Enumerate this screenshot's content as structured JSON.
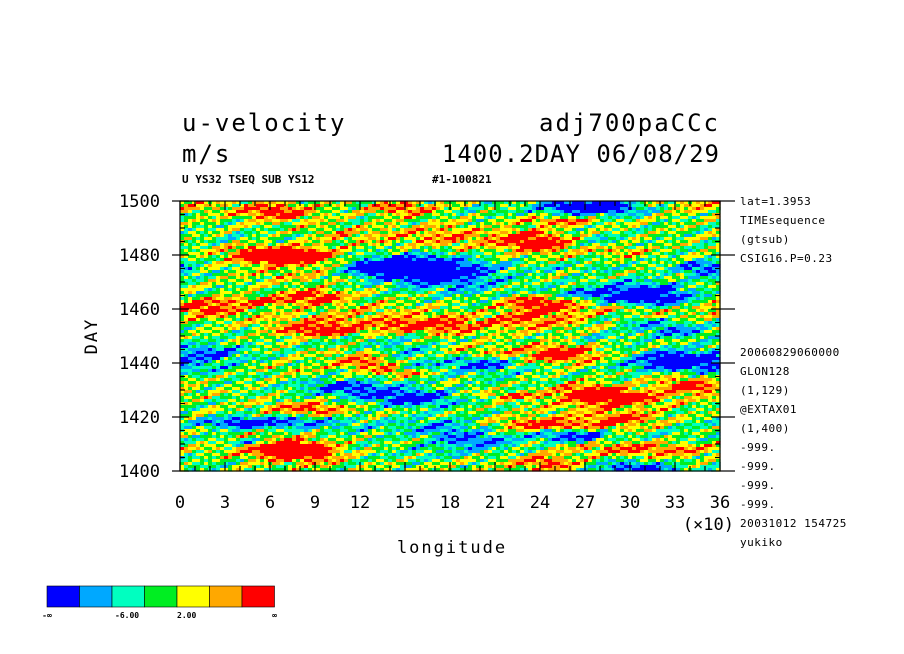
{
  "header": {
    "title_left": "u-velocity",
    "title_right": "adj700paCCc",
    "units": "m/s",
    "time": "1400.2DAY 06/08/29",
    "sub_left": "U YS32 TSEQ SUB YS12",
    "sub_right": "#1-100821"
  },
  "side_info": [
    "lat=1.3953",
    "TIMEsequence",
    "(gtsub)",
    "CSIG16.P=0.23"
  ],
  "side_info2": [
    "20060829060000",
    "GLON128",
    "(1,129)",
    "@EXTAX01",
    "(1,400)",
    "-999.",
    "-999.",
    "-999.",
    "-999.",
    "20031012 154725",
    "yukiko"
  ],
  "colorbar": {
    "colors": [
      "#0000ff",
      "#00a8ff",
      "#00ffc0",
      "#00ee22",
      "#ffff00",
      "#ffa800",
      "#ff0000"
    ],
    "labels": [
      "-∞",
      "-6.00",
      "2.00",
      "∞"
    ]
  },
  "chart_data": {
    "type": "heatmap",
    "xlabel": "longitude",
    "ylabel": "DAY",
    "x_multiplier": "(×10)",
    "xlim": [
      0,
      36
    ],
    "ylim": [
      1400,
      1500
    ],
    "xticks": [
      "0",
      "3",
      "6",
      "9",
      "12",
      "15",
      "18",
      "21",
      "24",
      "27",
      "30",
      "33",
      "36"
    ],
    "yticks": [
      "1400",
      "1420",
      "1440",
      "1460",
      "1480",
      "1500"
    ],
    "x_minor_step": 1,
    "y_minor_step": 5,
    "grid": false,
    "levels": 7
  }
}
